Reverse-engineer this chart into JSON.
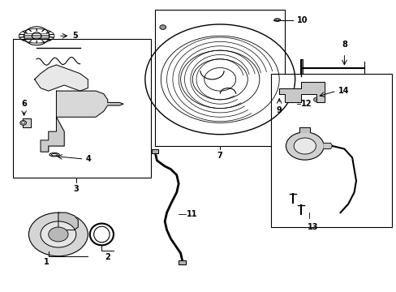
{
  "title": "",
  "background_color": "#ffffff",
  "border_color": "#000000",
  "line_color": "#000000",
  "text_color": "#000000",
  "fig_width": 4.89,
  "fig_height": 3.6,
  "dpi": 100
}
